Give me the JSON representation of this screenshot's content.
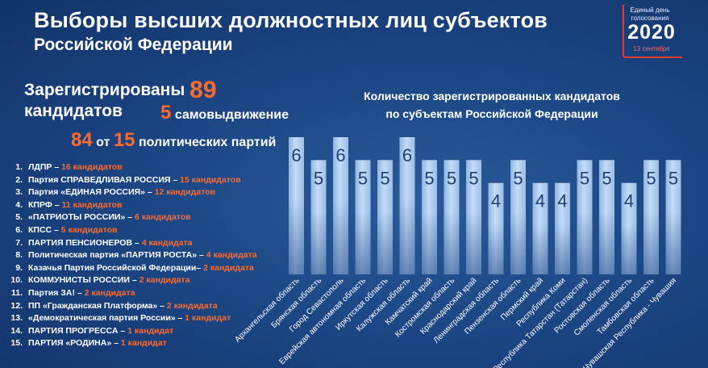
{
  "header": {
    "title_line1": "Выборы высших должностных лиц субъектов",
    "title_line2": "Российской Федерации"
  },
  "logo": {
    "line1": "Единый день",
    "line2": "голосования",
    "year": "2020",
    "date": "13 сентября"
  },
  "summary": {
    "registered_label": "Зарегистрированы",
    "registered_count": "89",
    "candidates_label": "кандидатов",
    "self_count": "5",
    "self_label": "самовыдвижение",
    "party_cand_count": "84",
    "from_label": "от",
    "party_count": "15",
    "parties_label": "политических партий"
  },
  "parties": [
    {
      "num": "1.",
      "name": "ЛДПР – ",
      "count": "16 кандидатов"
    },
    {
      "num": "2.",
      "name": "Партия СПРАВЕДЛИВАЯ РОССИЯ – ",
      "count": "15 кандидатов"
    },
    {
      "num": "3.",
      "name": "Партия «ЕДИНАЯ РОССИЯ» – ",
      "count": "12 кандидатов"
    },
    {
      "num": "4.",
      "name": "КПРФ – ",
      "count": "11 кандидатов"
    },
    {
      "num": "5.",
      "name": "«ПАТРИОТЫ РОССИИ» – ",
      "count": "6 кандидатов"
    },
    {
      "num": "6.",
      "name": "КПСС – ",
      "count": "5 кандидатов"
    },
    {
      "num": "7.",
      "name": "ПАРТИЯ ПЕНСИОНЕРОВ – ",
      "count": "4 кандидата"
    },
    {
      "num": "8.",
      "name": "Политическая партия «ПАРТИЯ РОСТА» – ",
      "count": "4 кандидата"
    },
    {
      "num": "9.",
      "name": "Казачья Партия Российской Федерации– ",
      "count": "2 кандидата"
    },
    {
      "num": "10.",
      "name": "КОММУНИСТЫ РОССИИ – ",
      "count": "2 кандидата"
    },
    {
      "num": "11.",
      "name": "Партия ЗА! – ",
      "count": "2 кандидата"
    },
    {
      "num": "12.",
      "name": "ПП «Гражданская Платформа» – ",
      "count": "2 кандидата"
    },
    {
      "num": "13.",
      "name": "«Демократическая партия России» – ",
      "count": "1 кандидат"
    },
    {
      "num": "14.",
      "name": "ПАРТИЯ ПРОГРЕССА – ",
      "count": "1 кандидат"
    },
    {
      "num": "15.",
      "name": "ПАРТИЯ «РОДИНА» – ",
      "count": "1 кандидат"
    }
  ],
  "chart_data": {
    "type": "bar",
    "title": "Количество зарегистрированных кандидатов по субъектам Российской Федерации",
    "title_line1": "Количество зарегистрированных кандидатов",
    "title_line2": "по субъектам Российской Федерации",
    "categories": [
      "Архангельская область",
      "Брянская область",
      "Город Севастополь",
      "Еврейская автономная область",
      "Иркутская область",
      "Калужская область",
      "Камчатский край",
      "Костромская область",
      "Краснодарский край",
      "Ленинградская область",
      "Пензенская область",
      "Пермский край",
      "Республика Коми",
      "Республика Татарстан (Татарстан)",
      "Ростовская область",
      "Смоленская область",
      "Тамбовская область",
      "Чувашская Республика - Чувашия"
    ],
    "values": [
      6,
      5,
      6,
      5,
      5,
      6,
      5,
      5,
      5,
      4,
      5,
      4,
      4,
      5,
      5,
      4,
      5,
      5
    ],
    "ylim": [
      0,
      6
    ],
    "grid": false,
    "data_labels": true,
    "bar_color": "#a8c8ec"
  }
}
